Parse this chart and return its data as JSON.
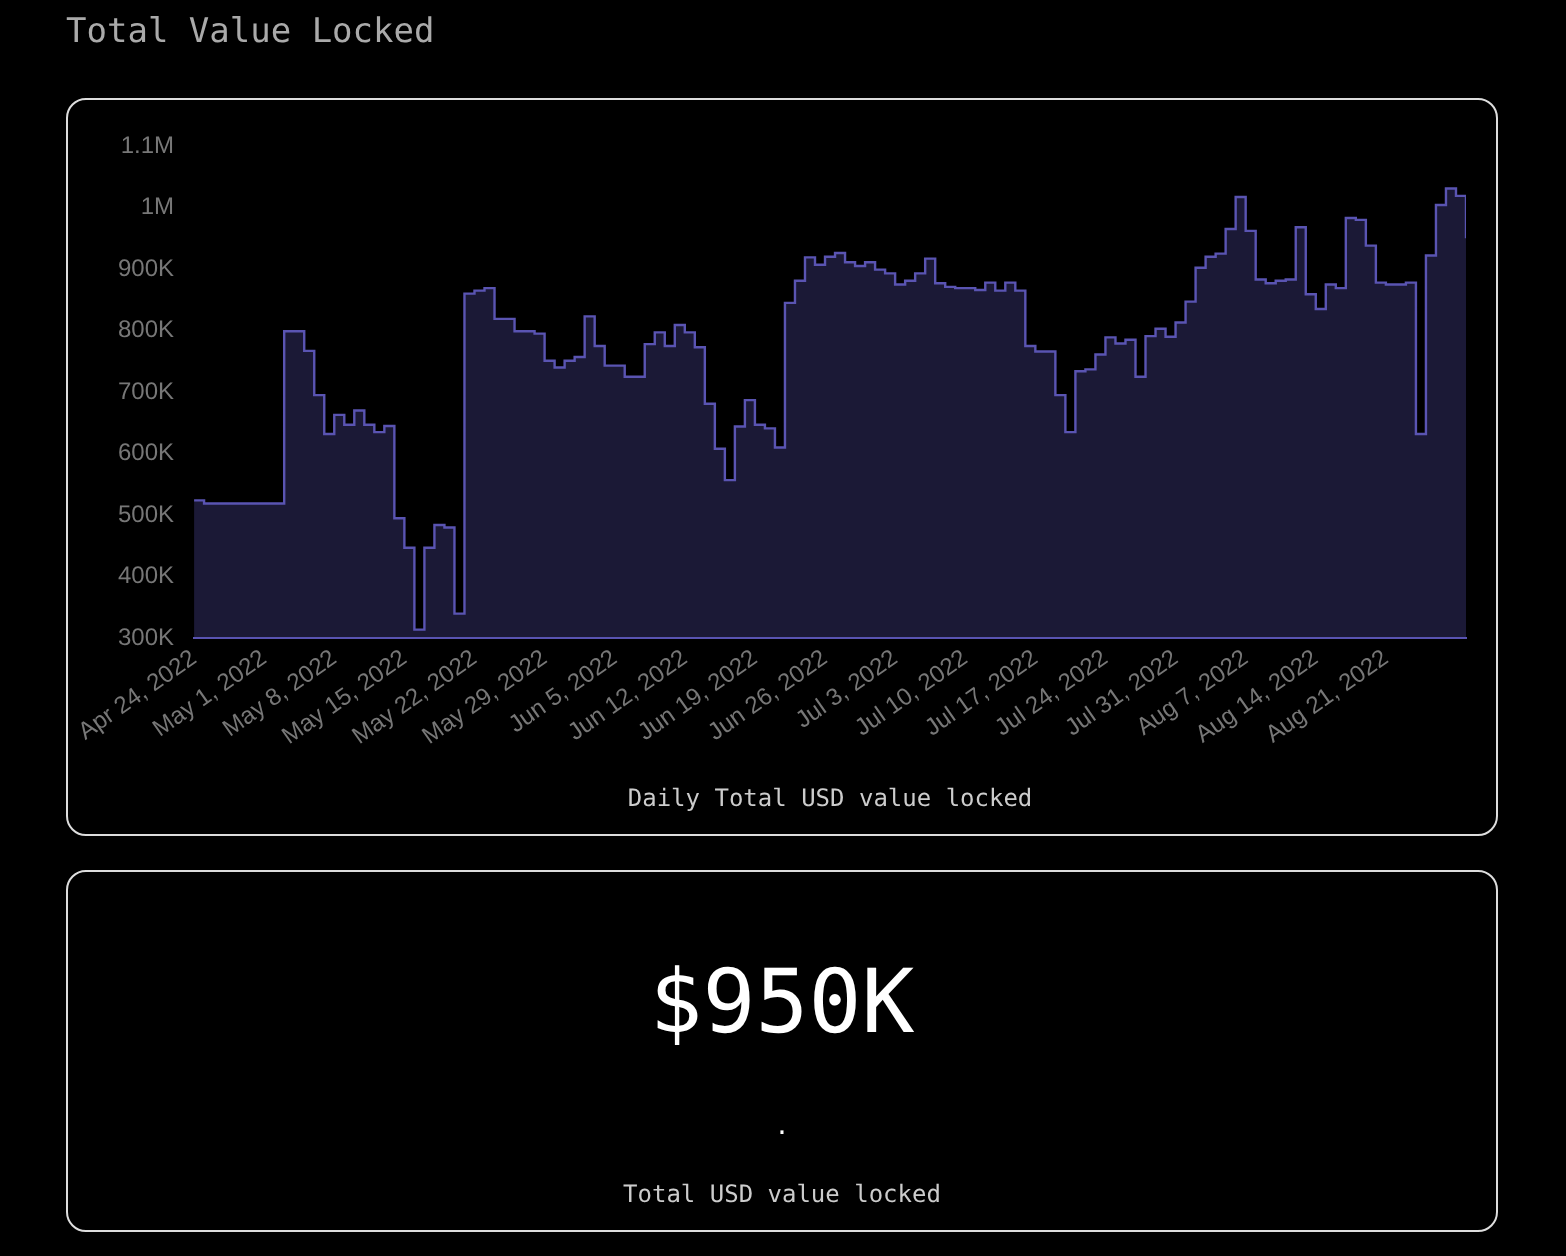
{
  "chart_data": [
    {
      "type": "area",
      "title": "Total Value Locked",
      "xlabel": "Daily Total USD value locked",
      "x": [
        "2022-04-24",
        "2022-04-25",
        "2022-04-26",
        "2022-04-27",
        "2022-04-28",
        "2022-04-29",
        "2022-04-30",
        "2022-05-01",
        "2022-05-02",
        "2022-05-03",
        "2022-05-04",
        "2022-05-05",
        "2022-05-06",
        "2022-05-07",
        "2022-05-08",
        "2022-05-09",
        "2022-05-10",
        "2022-05-11",
        "2022-05-12",
        "2022-05-13",
        "2022-05-14",
        "2022-05-15",
        "2022-05-16",
        "2022-05-17",
        "2022-05-18",
        "2022-05-19",
        "2022-05-20",
        "2022-05-21",
        "2022-05-22",
        "2022-05-23",
        "2022-05-24",
        "2022-05-25",
        "2022-05-26",
        "2022-05-27",
        "2022-05-28",
        "2022-05-29",
        "2022-05-30",
        "2022-05-31",
        "2022-06-01",
        "2022-06-02",
        "2022-06-03",
        "2022-06-04",
        "2022-06-05",
        "2022-06-06",
        "2022-06-07",
        "2022-06-08",
        "2022-06-09",
        "2022-06-10",
        "2022-06-11",
        "2022-06-12",
        "2022-06-13",
        "2022-06-14",
        "2022-06-15",
        "2022-06-16",
        "2022-06-17",
        "2022-06-18",
        "2022-06-19",
        "2022-06-20",
        "2022-06-21",
        "2022-06-22",
        "2022-06-23",
        "2022-06-24",
        "2022-06-25",
        "2022-06-26",
        "2022-06-27",
        "2022-06-28",
        "2022-06-29",
        "2022-06-30",
        "2022-07-01",
        "2022-07-02",
        "2022-07-03",
        "2022-07-04",
        "2022-07-05",
        "2022-07-06",
        "2022-07-07",
        "2022-07-08",
        "2022-07-09",
        "2022-07-10",
        "2022-07-11",
        "2022-07-12",
        "2022-07-13",
        "2022-07-14",
        "2022-07-15",
        "2022-07-16",
        "2022-07-17",
        "2022-07-18",
        "2022-07-19",
        "2022-07-20",
        "2022-07-21",
        "2022-07-22",
        "2022-07-23",
        "2022-07-24",
        "2022-07-25",
        "2022-07-26",
        "2022-07-27",
        "2022-07-28",
        "2022-07-29",
        "2022-07-30",
        "2022-07-31",
        "2022-08-01",
        "2022-08-02",
        "2022-08-03",
        "2022-08-04",
        "2022-08-05",
        "2022-08-06",
        "2022-08-07",
        "2022-08-08",
        "2022-08-09",
        "2022-08-10",
        "2022-08-11",
        "2022-08-12",
        "2022-08-13",
        "2022-08-14",
        "2022-08-15",
        "2022-08-16",
        "2022-08-17",
        "2022-08-18",
        "2022-08-19",
        "2022-08-20",
        "2022-08-21",
        "2022-08-22",
        "2022-08-23",
        "2022-08-24",
        "2022-08-25",
        "2022-08-26",
        "2022-08-27",
        "2022-08-28",
        "2022-08-29"
      ],
      "values": [
        524000,
        519000,
        519000,
        519000,
        519000,
        519000,
        519000,
        519000,
        519000,
        799000,
        799000,
        767000,
        695000,
        632000,
        663000,
        647000,
        670000,
        647000,
        635000,
        645000,
        495000,
        447000,
        314000,
        447000,
        484000,
        480000,
        340000,
        860000,
        865000,
        869000,
        819000,
        819000,
        799000,
        799000,
        795000,
        751000,
        740000,
        751000,
        757000,
        823000,
        775000,
        743000,
        743000,
        725000,
        725000,
        778000,
        797000,
        775000,
        809000,
        797000,
        773000,
        681000,
        608000,
        557000,
        644000,
        687000,
        647000,
        641000,
        610000,
        845000,
        881000,
        919000,
        907000,
        920000,
        926000,
        911000,
        905000,
        911000,
        899000,
        893000,
        875000,
        881000,
        893000,
        917000,
        877000,
        871000,
        869000,
        869000,
        866000,
        878000,
        865000,
        878000,
        865000,
        775000,
        766000,
        766000,
        695000,
        635000,
        734000,
        737000,
        761000,
        789000,
        779000,
        785000,
        725000,
        791000,
        803000,
        790000,
        813000,
        847000,
        902000,
        920000,
        925000,
        965000,
        1017000,
        962000,
        883000,
        877000,
        881000,
        883000,
        968000,
        859000,
        835000,
        875000,
        869000,
        983000,
        980000,
        938000,
        878000,
        875000,
        875000,
        878000,
        632000,
        922000,
        1004000,
        1031000,
        1019000,
        950000
      ],
      "color": "#5a54b2",
      "xlim": [
        "2022-04-24",
        "2022-08-29"
      ],
      "xticks": [
        {
          "value": "2022-04-24",
          "label": "Apr 24, 2022"
        },
        {
          "value": "2022-05-01",
          "label": "May 1, 2022"
        },
        {
          "value": "2022-05-08",
          "label": "May 8, 2022"
        },
        {
          "value": "2022-05-15",
          "label": "May 15, 2022"
        },
        {
          "value": "2022-05-22",
          "label": "May 22, 2022"
        },
        {
          "value": "2022-05-29",
          "label": "May 29, 2022"
        },
        {
          "value": "2022-06-05",
          "label": "Jun 5, 2022"
        },
        {
          "value": "2022-06-12",
          "label": "Jun 12, 2022"
        },
        {
          "value": "2022-06-19",
          "label": "Jun 19, 2022"
        },
        {
          "value": "2022-06-26",
          "label": "Jun 26, 2022"
        },
        {
          "value": "2022-07-03",
          "label": "Jul 3, 2022"
        },
        {
          "value": "2022-07-10",
          "label": "Jul 10, 2022"
        },
        {
          "value": "2022-07-17",
          "label": "Jul 17, 2022"
        },
        {
          "value": "2022-07-24",
          "label": "Jul 24, 2022"
        },
        {
          "value": "2022-07-31",
          "label": "Jul 31, 2022"
        },
        {
          "value": "2022-08-07",
          "label": "Aug 7, 2022"
        },
        {
          "value": "2022-08-14",
          "label": "Aug 14, 2022"
        },
        {
          "value": "2022-08-21",
          "label": "Aug 21, 2022"
        }
      ],
      "ylim": [
        300000,
        1100000
      ],
      "yticks": [
        {
          "value": 300000,
          "label": "300K"
        },
        {
          "value": 400000,
          "label": "400K"
        },
        {
          "value": 500000,
          "label": "500K"
        },
        {
          "value": 600000,
          "label": "600K"
        },
        {
          "value": 700000,
          "label": "700K"
        },
        {
          "value": 800000,
          "label": "800K"
        },
        {
          "value": 900000,
          "label": "900K"
        },
        {
          "value": 1000000,
          "label": "1M"
        },
        {
          "value": 1100000,
          "label": "1.1M"
        }
      ]
    },
    {
      "type": "other",
      "title": "$950K",
      "annotations": [
        ".",
        "Total USD value locked"
      ]
    }
  ]
}
